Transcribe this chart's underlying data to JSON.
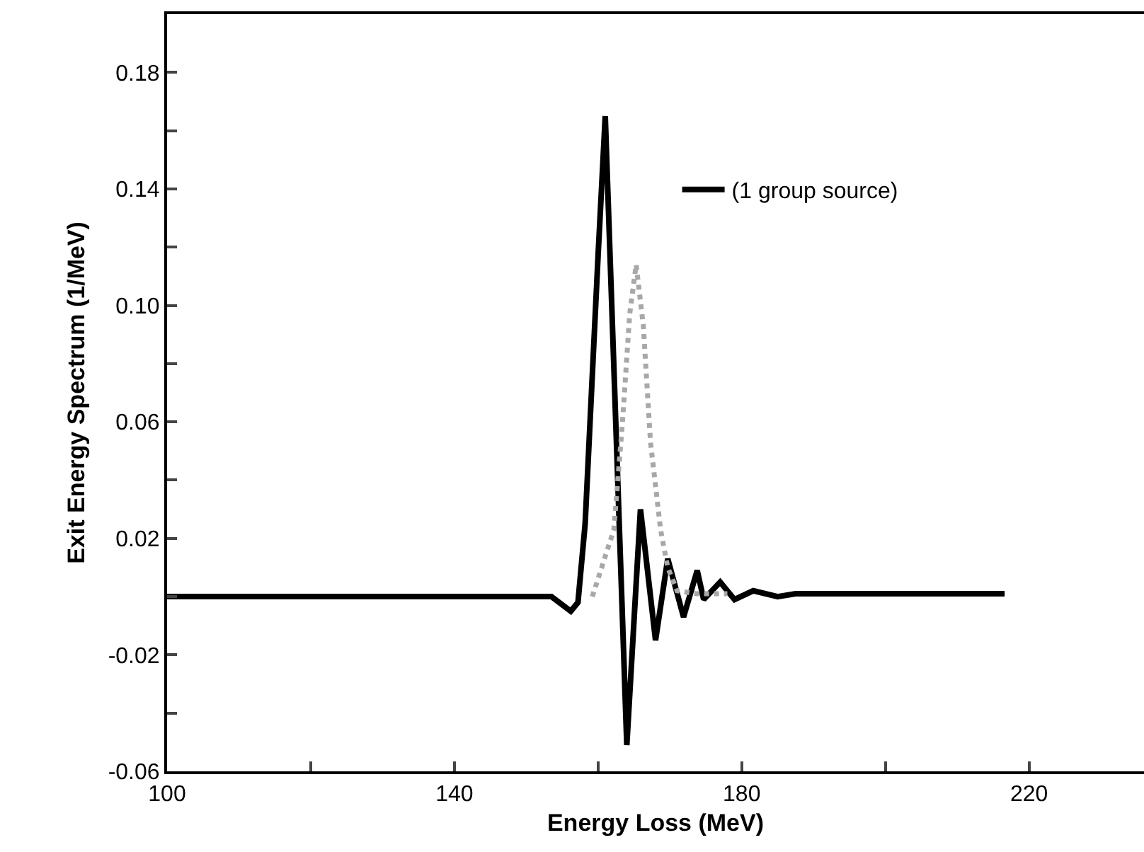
{
  "chart_data": {
    "type": "line",
    "xlabel": "Energy Loss (MeV)",
    "ylabel": "Exit Energy Spectrum (1/MeV)",
    "xlim": [
      100,
      236
    ],
    "xticks": [
      100,
      {
        "value": 120,
        "label": null
      },
      140,
      {
        "value": 160,
        "label": null
      },
      180,
      {
        "value": 200,
        "label": null
      },
      220
    ],
    "ylim": [
      -0.06,
      0.2
    ],
    "yticks": [
      -0.06,
      {
        "value": -0.04,
        "label": null
      },
      -0.02,
      {
        "value": 0,
        "label": null
      },
      0.02,
      {
        "value": 0.04,
        "label": null
      },
      0.06,
      {
        "value": 0.08,
        "label": null
      },
      {
        "value": 0.1,
        "label": "0.10"
      },
      {
        "value": 0.12,
        "label": null
      },
      0.14,
      {
        "value": 0.16,
        "label": null
      },
      0.18
    ],
    "grid": false,
    "legend": "top right",
    "marker": "none",
    "series": [
      {
        "name": "(1 group source)",
        "color": "#000000",
        "line_style": "solid",
        "x": [
          100,
          153.5,
          156.2,
          157.2,
          158.2,
          160,
          161,
          164,
          165.9,
          168,
          169.7,
          171.9,
          173.8,
          174.7,
          177,
          179,
          181.6,
          185,
          187.5,
          216.6
        ],
        "values": [
          0,
          0,
          -0.005,
          -0.002,
          0.025,
          0.117,
          0.165,
          -0.051,
          0.03,
          -0.015,
          0.013,
          -0.007,
          0.009,
          -0.001,
          0.005,
          -0.001,
          0.002,
          0,
          0.001,
          0.001
        ]
      },
      {
        "color": "#a8a8a8",
        "line_style": "dotted",
        "x": [
          159.2,
          162.2,
          163.4,
          164.4,
          165.3,
          166.3,
          167.3,
          168.7,
          169.7,
          171,
          173.7,
          178
        ],
        "values": [
          0,
          0.023,
          0.06,
          0.097,
          0.114,
          0.093,
          0.053,
          0.023,
          0.01,
          0.002,
          0.001,
          0.001
        ]
      }
    ]
  }
}
